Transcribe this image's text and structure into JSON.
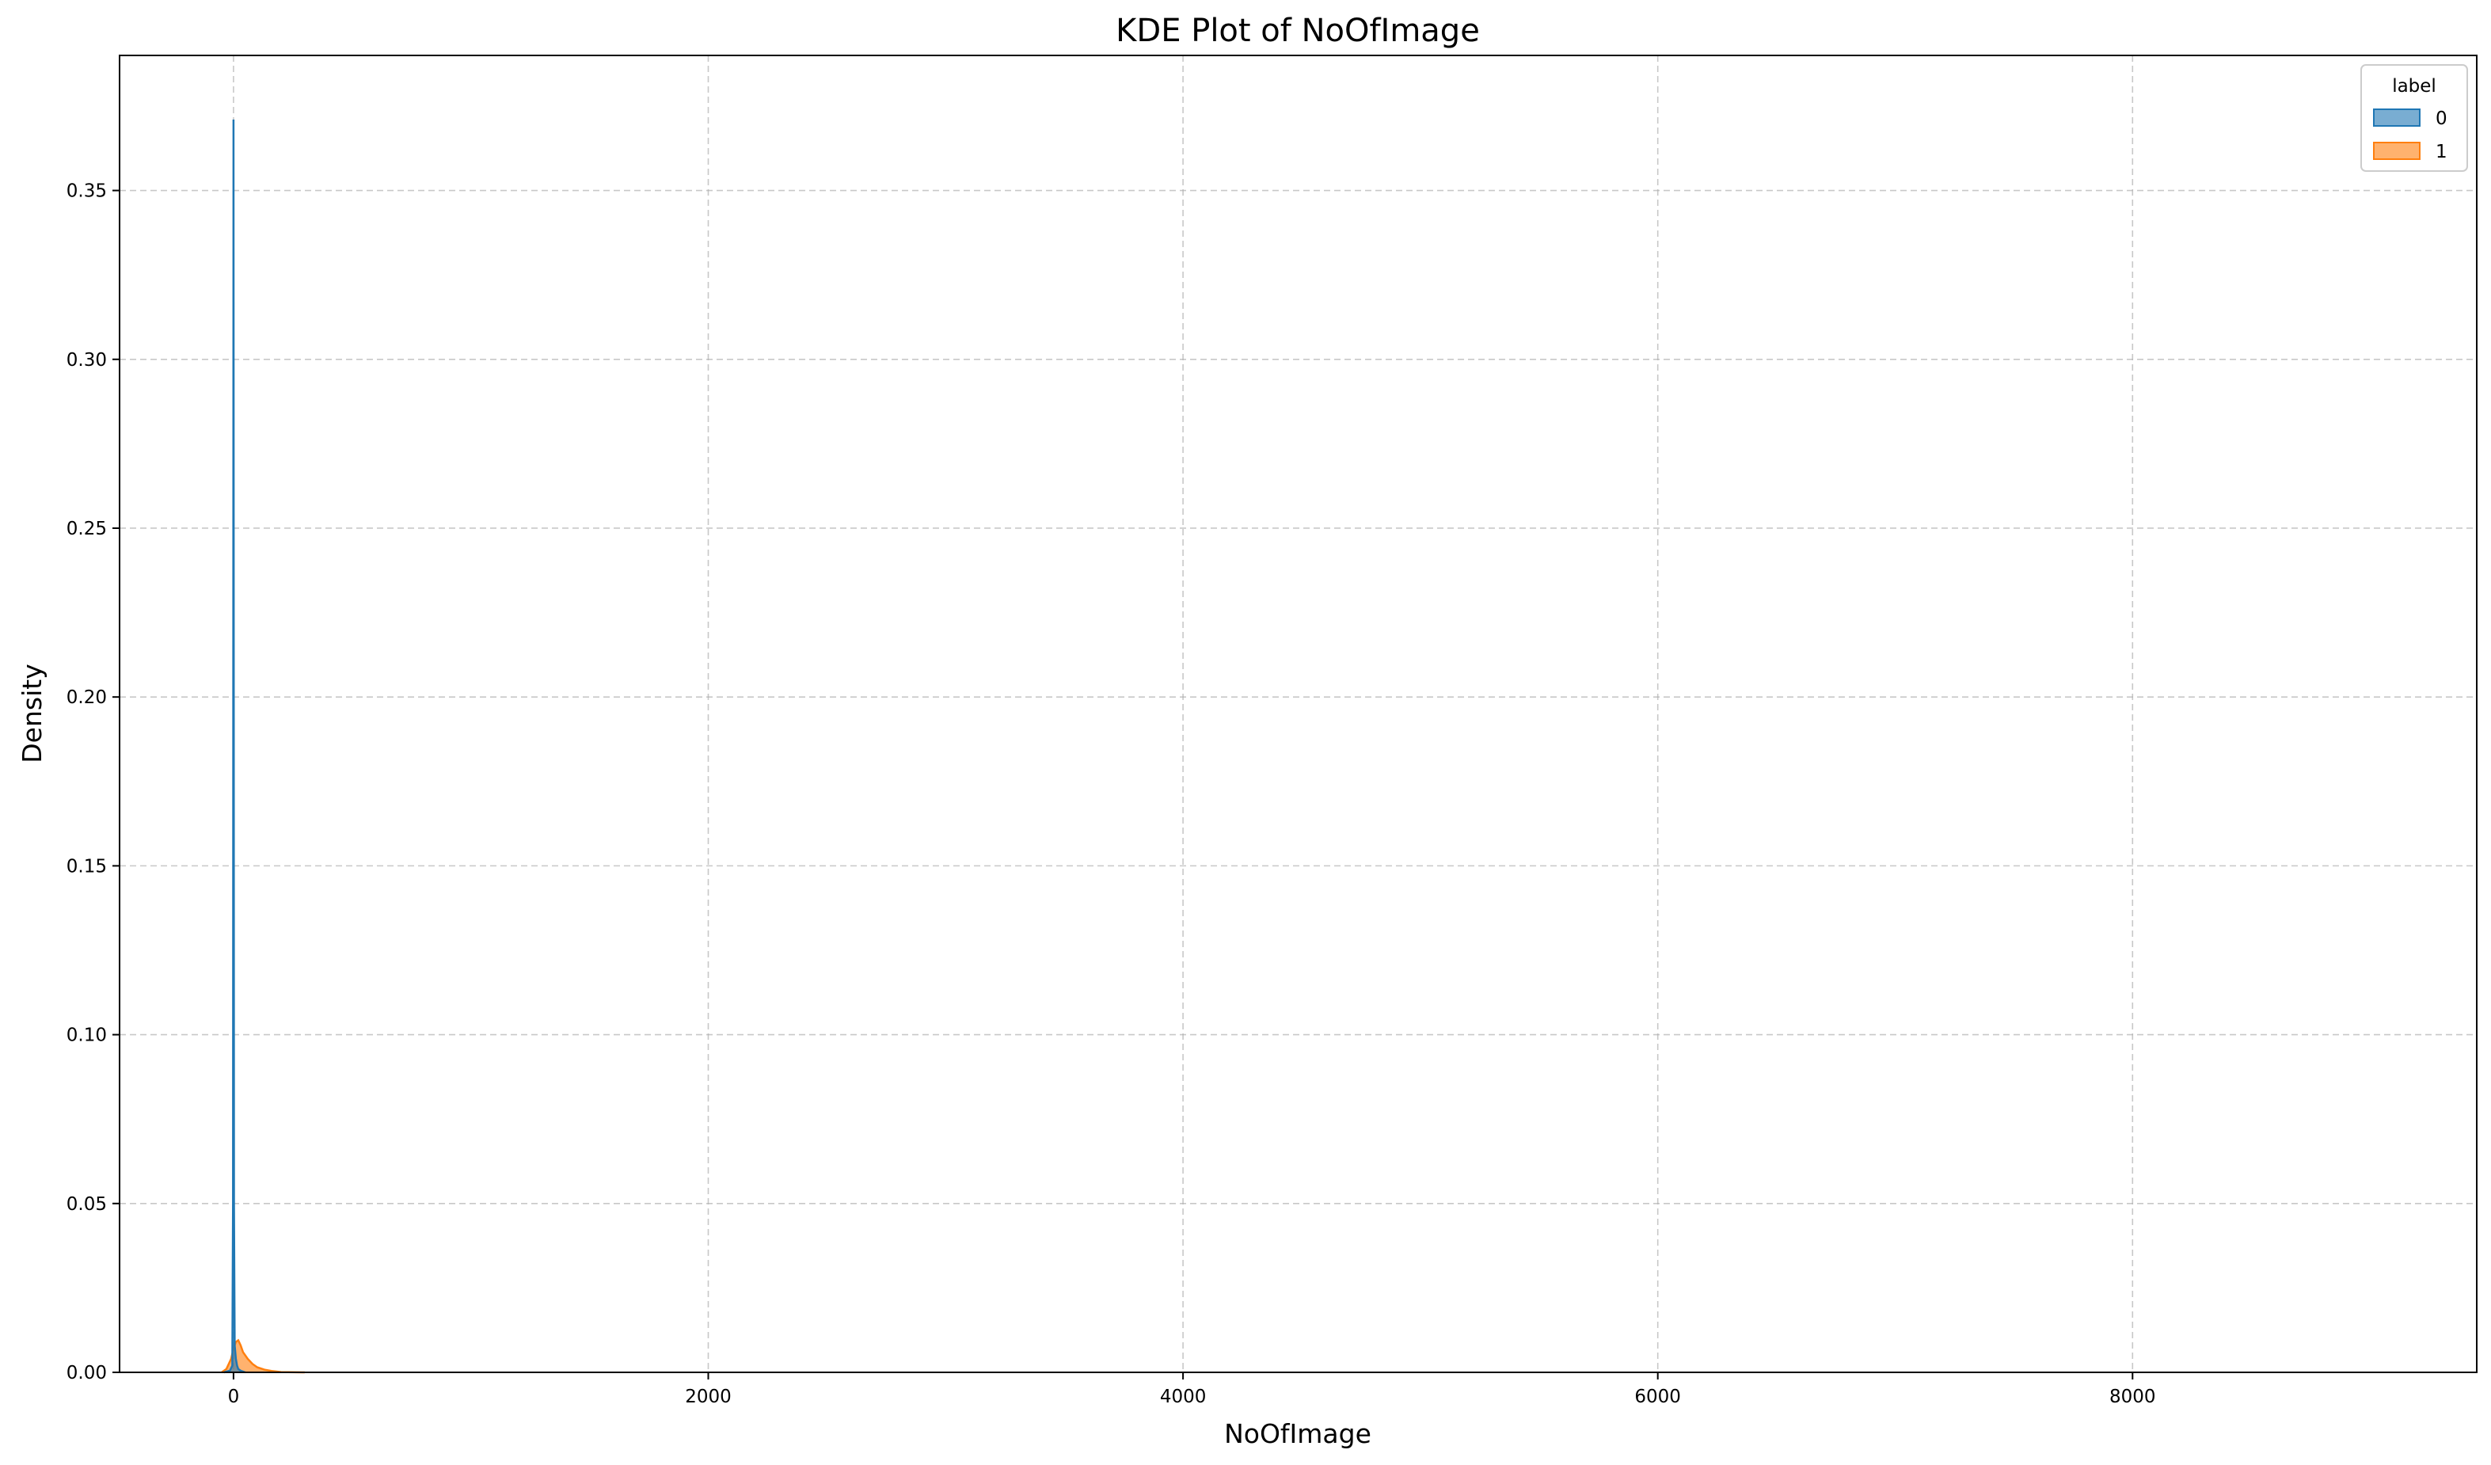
{
  "chart_data": {
    "type": "area",
    "title": "KDE Plot of NoOfImage",
    "xlabel": "NoOfImage",
    "ylabel": "Density",
    "xlim": [
      -480,
      9450
    ],
    "ylim": [
      0,
      0.39
    ],
    "x_ticks": [
      0,
      2000,
      4000,
      6000,
      8000
    ],
    "y_ticks": [
      0.0,
      0.05,
      0.1,
      0.15,
      0.2,
      0.25,
      0.3,
      0.35
    ],
    "x_tick_labels": [
      "0",
      "2000",
      "4000",
      "6000",
      "8000"
    ],
    "y_tick_labels": [
      "0.00",
      "0.05",
      "0.10",
      "0.15",
      "0.20",
      "0.25",
      "0.30",
      "0.35"
    ],
    "grid": true,
    "legend": {
      "title": "label",
      "position": "top-right",
      "entries": [
        "0",
        "1"
      ]
    },
    "series": [
      {
        "name": "0",
        "color": "#1f77b4",
        "fill_opacity": 0.6,
        "x": [
          -40,
          -15,
          -5,
          -2,
          0,
          2,
          5,
          10,
          15,
          20,
          30,
          50
        ],
        "y": [
          0,
          0.0005,
          0.002,
          0.05,
          0.371,
          0.05,
          0.008,
          0.004,
          0.002,
          0.001,
          0.0005,
          0
        ]
      },
      {
        "name": "1",
        "color": "#ff7f0e",
        "fill_opacity": 0.6,
        "x": [
          -50,
          -30,
          -10,
          0,
          10,
          20,
          30,
          40,
          60,
          80,
          100,
          130,
          160,
          200,
          300
        ],
        "y": [
          0,
          0.001,
          0.004,
          0.007,
          0.009,
          0.0095,
          0.008,
          0.006,
          0.004,
          0.0025,
          0.0015,
          0.0008,
          0.0004,
          0.0001,
          0
        ]
      }
    ]
  }
}
